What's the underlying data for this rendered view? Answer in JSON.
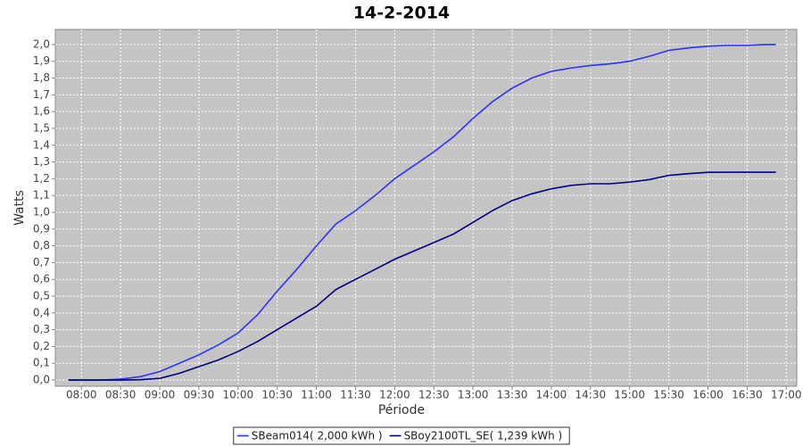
{
  "chart_data": {
    "type": "line",
    "title": "14-2-2014",
    "x_label": "Période",
    "y_label": "Watts",
    "x": [
      "07:50",
      "08:00",
      "08:15",
      "08:30",
      "08:45",
      "09:00",
      "09:15",
      "09:30",
      "09:45",
      "10:00",
      "10:15",
      "10:30",
      "10:45",
      "11:00",
      "11:15",
      "11:30",
      "11:45",
      "12:00",
      "12:15",
      "12:30",
      "12:45",
      "13:00",
      "13:15",
      "13:30",
      "13:45",
      "14:00",
      "14:15",
      "14:30",
      "14:45",
      "15:00",
      "15:15",
      "15:30",
      "15:45",
      "16:00",
      "16:15",
      "16:30",
      "16:45",
      "16:52"
    ],
    "series": [
      {
        "name": "SBeam014( 2,000 kWh )",
        "color": "#2f2fff",
        "values": [
          0,
          0,
          0,
          0.005,
          0.02,
          0.05,
          0.1,
          0.15,
          0.21,
          0.28,
          0.39,
          0.53,
          0.66,
          0.8,
          0.93,
          1.01,
          1.1,
          1.2,
          1.28,
          1.36,
          1.45,
          1.56,
          1.66,
          1.74,
          1.8,
          1.84,
          1.86,
          1.875,
          1.885,
          1.9,
          1.93,
          1.965,
          1.98,
          1.99,
          1.995,
          1.995,
          2.0,
          2.0
        ]
      },
      {
        "name": "SBoy2100TL_SE( 1,239 kWh )",
        "color": "#000080",
        "values": [
          0,
          0,
          0,
          0,
          0.002,
          0.01,
          0.04,
          0.08,
          0.12,
          0.17,
          0.23,
          0.3,
          0.37,
          0.44,
          0.54,
          0.6,
          0.66,
          0.72,
          0.77,
          0.82,
          0.87,
          0.94,
          1.01,
          1.07,
          1.11,
          1.14,
          1.16,
          1.17,
          1.17,
          1.18,
          1.195,
          1.22,
          1.23,
          1.238,
          1.239,
          1.239,
          1.239,
          1.239
        ]
      }
    ],
    "xlim": [
      "07:40",
      "17:08"
    ],
    "xticks": [
      "08:00",
      "08:30",
      "09:00",
      "09:30",
      "10:00",
      "10:30",
      "11:00",
      "11:30",
      "12:00",
      "12:30",
      "13:00",
      "13:30",
      "14:00",
      "14:30",
      "15:00",
      "15:30",
      "16:00",
      "16:30",
      "17:00"
    ],
    "ylim": [
      -0.037,
      2.09
    ],
    "yticks": [
      {
        "value": 0,
        "label": "0,0"
      },
      {
        "value": 0.1,
        "label": "0,1"
      },
      {
        "value": 0.2,
        "label": "0,2"
      },
      {
        "value": 0.3,
        "label": "0,3"
      },
      {
        "value": 0.4,
        "label": "0,4"
      },
      {
        "value": 0.5,
        "label": "0,5"
      },
      {
        "value": 0.6,
        "label": "0,6"
      },
      {
        "value": 0.7,
        "label": "0,7"
      },
      {
        "value": 0.8,
        "label": "0,8"
      },
      {
        "value": 0.9,
        "label": "0,9"
      },
      {
        "value": 1.0,
        "label": "1,0"
      },
      {
        "value": 1.1,
        "label": "1,1"
      },
      {
        "value": 1.2,
        "label": "1,2"
      },
      {
        "value": 1.3,
        "label": "1,3"
      },
      {
        "value": 1.4,
        "label": "1,4"
      },
      {
        "value": 1.5,
        "label": "1,5"
      },
      {
        "value": 1.6,
        "label": "1,6"
      },
      {
        "value": 1.7,
        "label": "1,7"
      },
      {
        "value": 1.8,
        "label": "1,8"
      },
      {
        "value": 1.9,
        "label": "1,9"
      },
      {
        "value": 2.0,
        "label": "2,0"
      }
    ],
    "grid": true,
    "legend": "bottom"
  }
}
